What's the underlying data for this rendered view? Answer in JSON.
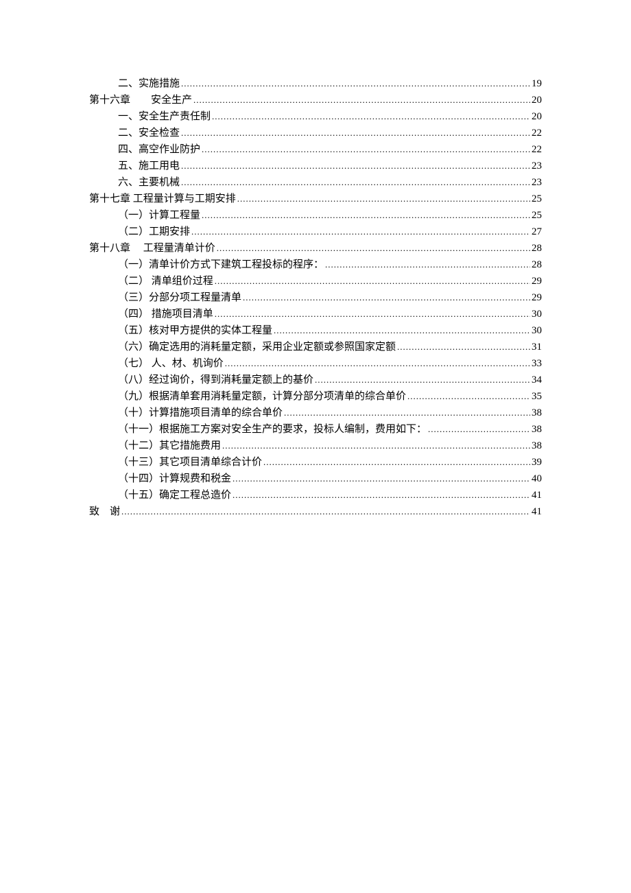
{
  "toc": {
    "font_family": "SimSun",
    "text_color": "#000000",
    "background_color": "#ffffff",
    "entry_fontsize": 15,
    "entries": [
      {
        "level": 1,
        "title": "二、实施措施",
        "page": "19"
      },
      {
        "level": 0,
        "title": "第十六章　　安全生产",
        "page": "20"
      },
      {
        "level": 1,
        "title": "一、安全生产责任制",
        "page": "20"
      },
      {
        "level": 1,
        "title": "二、安全检查",
        "page": "22"
      },
      {
        "level": 1,
        "title": "四、高空作业防护",
        "page": "22"
      },
      {
        "level": 1,
        "title": "五、施工用电",
        "page": "23"
      },
      {
        "level": 1,
        "title": "六、主要机械",
        "page": "23"
      },
      {
        "level": 0,
        "title": "第十七章 工程量计算与工期安排",
        "page": "25"
      },
      {
        "level": 1,
        "title": "（一）计算工程量",
        "page": "25"
      },
      {
        "level": 1,
        "title": "（二）工期安排",
        "page": "27"
      },
      {
        "level": 0,
        "title": "第十八章　 工程量清单计价",
        "page": "28"
      },
      {
        "level": 1,
        "title": "（一）清单计价方式下建筑工程投标的程序：",
        "page": "28"
      },
      {
        "level": 1,
        "title": "（二） 清单组价过程",
        "page": "29"
      },
      {
        "level": 1,
        "title": "（三）分部分项工程量清单",
        "page": "29"
      },
      {
        "level": 1,
        "title": "（四） 措施项目清单",
        "page": "30"
      },
      {
        "level": 1,
        "title": "（五）核对甲方提供的实体工程量",
        "page": "30"
      },
      {
        "level": 1,
        "title": "（六）确定选用的消耗量定额，采用企业定额或参照国家定额",
        "page": "31"
      },
      {
        "level": 1,
        "title": "（七） 人、材、机询价",
        "page": "33"
      },
      {
        "level": 1,
        "title": "（八）经过询价，得到消耗量定额上的基价",
        "page": "34"
      },
      {
        "level": 1,
        "title": "（九）根据清单套用消耗量定额，计算分部分项清单的综合单价",
        "page": "35"
      },
      {
        "level": 1,
        "title": "（十）计算措施项目清单的综合单价",
        "page": "38"
      },
      {
        "level": 1,
        "title": "（十一）根据施工方案对安全生产的要求，投标人编制，费用如下：",
        "page": "38"
      },
      {
        "level": 1,
        "title": "（十二）其它措施费用",
        "page": "38"
      },
      {
        "level": 1,
        "title": "（十三）其它项目清单综合计价",
        "page": "39"
      },
      {
        "level": 1,
        "title": "（十四）计算规费和税金",
        "page": "40"
      },
      {
        "level": 1,
        "title": "（十五）确定工程总造价",
        "page": "41"
      },
      {
        "level": 0,
        "title": "致　谢",
        "page": "41"
      }
    ]
  }
}
